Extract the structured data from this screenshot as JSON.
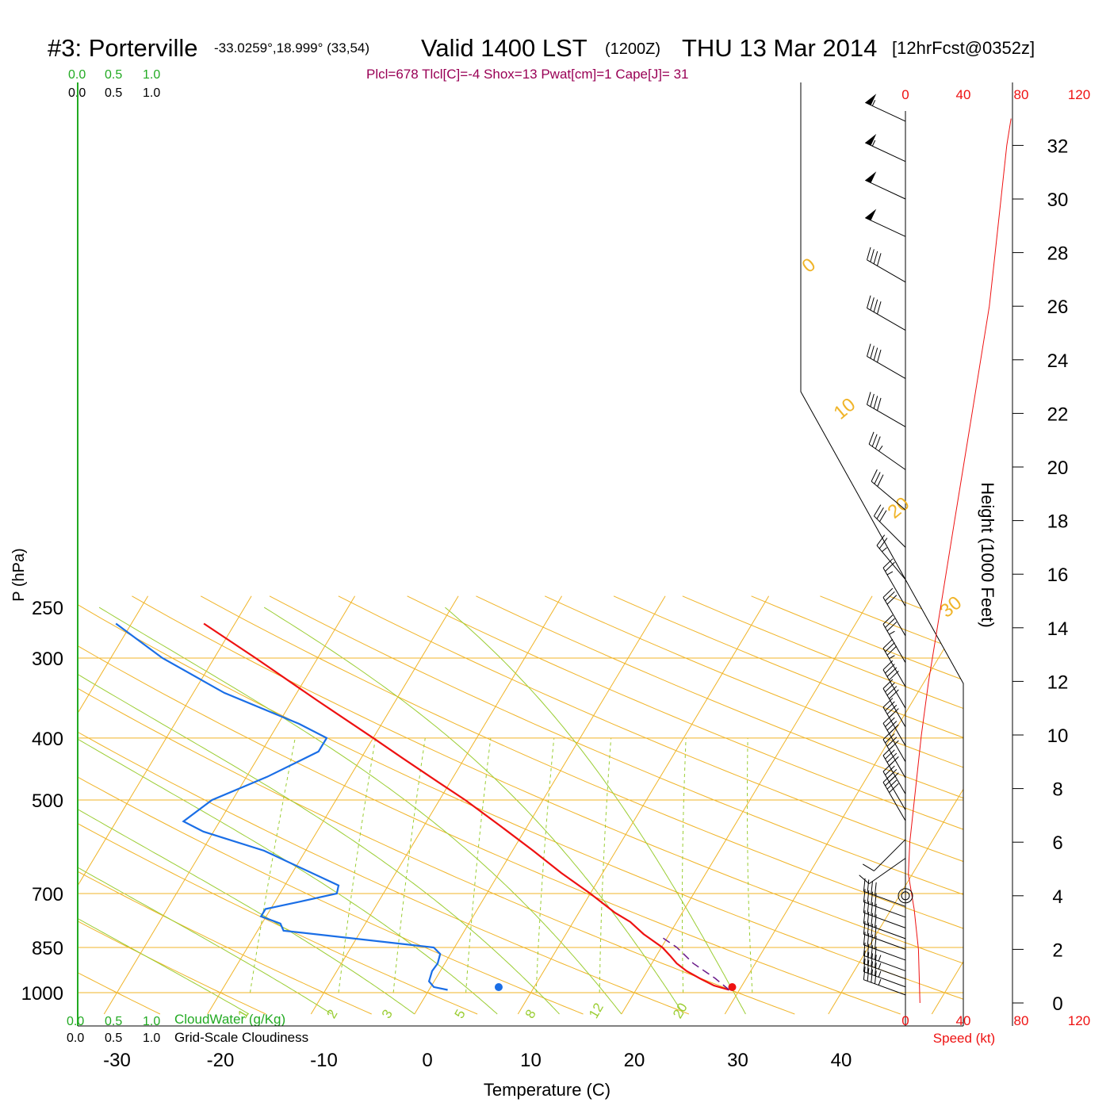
{
  "header": {
    "station": "#3: Porterville",
    "coords": "-33.0259°,18.999° (33,54)",
    "valid": "Valid 1400 LST",
    "zulu": "(1200Z)",
    "date": "THU 13 Mar 2014",
    "forecast": "[12hrFcst@0352z]"
  },
  "indices": "Plcl=678 Tlcl[C]=-4 Shox=13 Pwat[cm]=1 Cape[J]= 31",
  "colors": {
    "temperature": "#ee1111",
    "dewpoint": "#1a6ee6",
    "isotherm": "#f0b428",
    "dry_adiabat": "#f0b428",
    "moist_adiabat": "#9acd32",
    "mixing_ratio": "#9acd32",
    "cloud_scale_green": "#22aa22",
    "parcel": "#6a1a8a",
    "indices": "#990055",
    "speed": "#ee1111"
  },
  "chart_data": {
    "type": "skew-t",
    "xlabel": "Temperature (C)",
    "ylabel": "P (hPa)",
    "height_label": "Height (1000 Feet)",
    "speed_label": "Speed (kt)",
    "pressure_ticks": [
      {
        "p": 250,
        "label": "250"
      },
      {
        "p": 300,
        "label": "300"
      },
      {
        "p": 400,
        "label": "400"
      },
      {
        "p": 500,
        "label": "500"
      },
      {
        "p": 700,
        "label": "700"
      },
      {
        "p": 850,
        "label": "850"
      },
      {
        "p": 1000,
        "label": "1000"
      }
    ],
    "temp_ticks": [
      {
        "t": -30,
        "label": "-30"
      },
      {
        "t": -20,
        "label": "-20"
      },
      {
        "t": -10,
        "label": "-10"
      },
      {
        "t": 0,
        "label": "0"
      },
      {
        "t": 10,
        "label": "10"
      },
      {
        "t": 20,
        "label": "20"
      },
      {
        "t": 30,
        "label": "30"
      },
      {
        "t": 40,
        "label": "40"
      }
    ],
    "height_ticks": [
      {
        "h": 0,
        "label": "0"
      },
      {
        "h": 2,
        "label": "2"
      },
      {
        "h": 4,
        "label": "4"
      },
      {
        "h": 6,
        "label": "6"
      },
      {
        "h": 8,
        "label": "8"
      },
      {
        "h": 10,
        "label": "10"
      },
      {
        "h": 12,
        "label": "12"
      },
      {
        "h": 14,
        "label": "14"
      },
      {
        "h": 16,
        "label": "16"
      },
      {
        "h": 18,
        "label": "18"
      },
      {
        "h": 20,
        "label": "20"
      },
      {
        "h": 22,
        "label": "22"
      },
      {
        "h": 24,
        "label": "24"
      },
      {
        "h": 26,
        "label": "26"
      },
      {
        "h": 28,
        "label": "28"
      },
      {
        "h": 30,
        "label": "30"
      },
      {
        "h": 32,
        "label": "32"
      }
    ],
    "speed_ticks": [
      {
        "v": 0,
        "label": "0"
      },
      {
        "v": 40,
        "label": "40"
      },
      {
        "v": 80,
        "label": "80"
      },
      {
        "v": 120,
        "label": "120"
      }
    ],
    "isotherm_labels": [
      {
        "t": 10,
        "label": "10"
      },
      {
        "t": 0,
        "label": "0"
      },
      {
        "t": -10,
        "label": "-10"
      },
      {
        "t": -20,
        "label": "-20"
      },
      {
        "t": -30,
        "label": "-30"
      }
    ],
    "theta_labels": [
      {
        "t": 0,
        "label": "0"
      },
      {
        "t": 10,
        "label": "10"
      },
      {
        "t": 20,
        "label": "20"
      },
      {
        "t": 30,
        "label": "30"
      }
    ],
    "mixing_ratio_labels": [
      "1",
      "2",
      "3",
      "5",
      "8",
      "12",
      "20"
    ],
    "cloud_scales": {
      "cloudwater_values": [
        "0.0",
        "0.5",
        "1.0"
      ],
      "cloudwater_label": "CloudWater (g/Kg)",
      "cloudiness_values": [
        "0.0",
        "0.5",
        "1.0"
      ],
      "cloudiness_label": "Grid-Scale Cloudiness"
    },
    "temperature_profile": [
      {
        "p": 990,
        "t": 29.0
      },
      {
        "p": 975,
        "t": 27.3
      },
      {
        "p": 950,
        "t": 25.5
      },
      {
        "p": 925,
        "t": 23.8
      },
      {
        "p": 900,
        "t": 22.4
      },
      {
        "p": 875,
        "t": 21.3
      },
      {
        "p": 850,
        "t": 20.1
      },
      {
        "p": 825,
        "t": 18.5
      },
      {
        "p": 810,
        "t": 17.5
      },
      {
        "p": 775,
        "t": 15.5
      },
      {
        "p": 750,
        "t": 13.5
      },
      {
        "p": 700,
        "t": 10.0
      },
      {
        "p": 650,
        "t": 6.0
      },
      {
        "p": 600,
        "t": 2.0
      },
      {
        "p": 550,
        "t": -2.5
      },
      {
        "p": 500,
        "t": -7.5
      },
      {
        "p": 470,
        "t": -11.0
      },
      {
        "p": 430,
        "t": -16.0
      },
      {
        "p": 400,
        "t": -20.0
      },
      {
        "p": 350,
        "t": -27.5
      },
      {
        "p": 300,
        "t": -36.0
      },
      {
        "p": 265,
        "t": -43.0
      }
    ],
    "dewpoint_profile": [
      {
        "p": 990,
        "t": 1.8
      },
      {
        "p": 980,
        "t": 0.3
      },
      {
        "p": 960,
        "t": -0.5
      },
      {
        "p": 925,
        "t": -0.8
      },
      {
        "p": 900,
        "t": -0.7
      },
      {
        "p": 870,
        "t": -1.0
      },
      {
        "p": 850,
        "t": -2.0
      },
      {
        "p": 800,
        "t": -17.5
      },
      {
        "p": 780,
        "t": -18.2
      },
      {
        "p": 760,
        "t": -20.5
      },
      {
        "p": 740,
        "t": -20.5
      },
      {
        "p": 720,
        "t": -17.5
      },
      {
        "p": 700,
        "t": -14.5
      },
      {
        "p": 680,
        "t": -14.8
      },
      {
        "p": 600,
        "t": -24.0
      },
      {
        "p": 560,
        "t": -31.0
      },
      {
        "p": 540,
        "t": -33.5
      },
      {
        "p": 500,
        "t": -32.0
      },
      {
        "p": 460,
        "t": -28.0
      },
      {
        "p": 420,
        "t": -24.5
      },
      {
        "p": 400,
        "t": -24.5
      },
      {
        "p": 380,
        "t": -28.0
      },
      {
        "p": 340,
        "t": -37.0
      },
      {
        "p": 300,
        "t": -45.0
      },
      {
        "p": 265,
        "t": -51.5
      }
    ],
    "parcel_profile": [
      {
        "p": 990,
        "t": 29.0
      },
      {
        "p": 950,
        "t": 27.0
      },
      {
        "p": 900,
        "t": 24.0
      },
      {
        "p": 850,
        "t": 21.5
      },
      {
        "p": 820,
        "t": 19.5
      }
    ],
    "surface_dewpoint": {
      "t": 7.2
    },
    "surface_temperature": {
      "t": 30.0
    },
    "wind_barbs": [
      {
        "h": 0.3,
        "dir": 290,
        "spd": 45
      },
      {
        "h": 0.6,
        "dir": 290,
        "spd": 45
      },
      {
        "h": 0.9,
        "dir": 290,
        "spd": 45
      },
      {
        "h": 1.2,
        "dir": 290,
        "spd": 45
      },
      {
        "h": 1.6,
        "dir": 290,
        "spd": 40
      },
      {
        "h": 2.0,
        "dir": 290,
        "spd": 40
      },
      {
        "h": 2.4,
        "dir": 290,
        "spd": 40
      },
      {
        "h": 2.8,
        "dir": 290,
        "spd": 40
      },
      {
        "h": 3.2,
        "dir": 290,
        "spd": 40
      },
      {
        "h": 3.6,
        "dir": 290,
        "spd": 40
      },
      {
        "h": 5.4,
        "dir": 235,
        "spd": 10
      },
      {
        "h": 6.1,
        "dir": 225,
        "spd": 10
      },
      {
        "h": 6.8,
        "dir": 330,
        "spd": 40
      },
      {
        "h": 7.2,
        "dir": 330,
        "spd": 40
      },
      {
        "h": 7.8,
        "dir": 330,
        "spd": 40
      },
      {
        "h": 8.4,
        "dir": 330,
        "spd": 40
      },
      {
        "h": 9.0,
        "dir": 330,
        "spd": 40
      },
      {
        "h": 9.6,
        "dir": 330,
        "spd": 40
      },
      {
        "h": 10.3,
        "dir": 330,
        "spd": 40
      },
      {
        "h": 11.0,
        "dir": 330,
        "spd": 40
      },
      {
        "h": 11.8,
        "dir": 330,
        "spd": 35
      },
      {
        "h": 12.7,
        "dir": 330,
        "spd": 35
      },
      {
        "h": 13.7,
        "dir": 330,
        "spd": 30
      },
      {
        "h": 14.8,
        "dir": 330,
        "spd": 25
      },
      {
        "h": 15.8,
        "dir": 320,
        "spd": 25
      },
      {
        "h": 17.0,
        "dir": 315,
        "spd": 30
      },
      {
        "h": 18.4,
        "dir": 310,
        "spd": 30
      },
      {
        "h": 19.9,
        "dir": 305,
        "spd": 35
      },
      {
        "h": 21.5,
        "dir": 300,
        "spd": 40
      },
      {
        "h": 23.3,
        "dir": 300,
        "spd": 40
      },
      {
        "h": 25.1,
        "dir": 300,
        "spd": 40
      },
      {
        "h": 26.9,
        "dir": 300,
        "spd": 40
      },
      {
        "h": 28.6,
        "dir": 295,
        "spd": 50
      },
      {
        "h": 30.0,
        "dir": 295,
        "spd": 50
      },
      {
        "h": 31.4,
        "dir": 295,
        "spd": 55
      },
      {
        "h": 32.9,
        "dir": 295,
        "spd": 55
      }
    ],
    "speed_profile": [
      {
        "h": 0.0,
        "v": 10
      },
      {
        "h": 2.0,
        "v": 9
      },
      {
        "h": 3.5,
        "v": 6
      },
      {
        "h": 4.8,
        "v": 2
      },
      {
        "h": 6.0,
        "v": 3
      },
      {
        "h": 8.0,
        "v": 7
      },
      {
        "h": 10.0,
        "v": 11
      },
      {
        "h": 12.0,
        "v": 16
      },
      {
        "h": 14.0,
        "v": 22
      },
      {
        "h": 16.0,
        "v": 28
      },
      {
        "h": 18.0,
        "v": 34
      },
      {
        "h": 20.0,
        "v": 40
      },
      {
        "h": 22.0,
        "v": 46
      },
      {
        "h": 24.0,
        "v": 52
      },
      {
        "h": 26.0,
        "v": 58
      },
      {
        "h": 28.0,
        "v": 62
      },
      {
        "h": 30.0,
        "v": 66
      },
      {
        "h": 32.0,
        "v": 70
      },
      {
        "h": 33.0,
        "v": 73
      }
    ]
  }
}
